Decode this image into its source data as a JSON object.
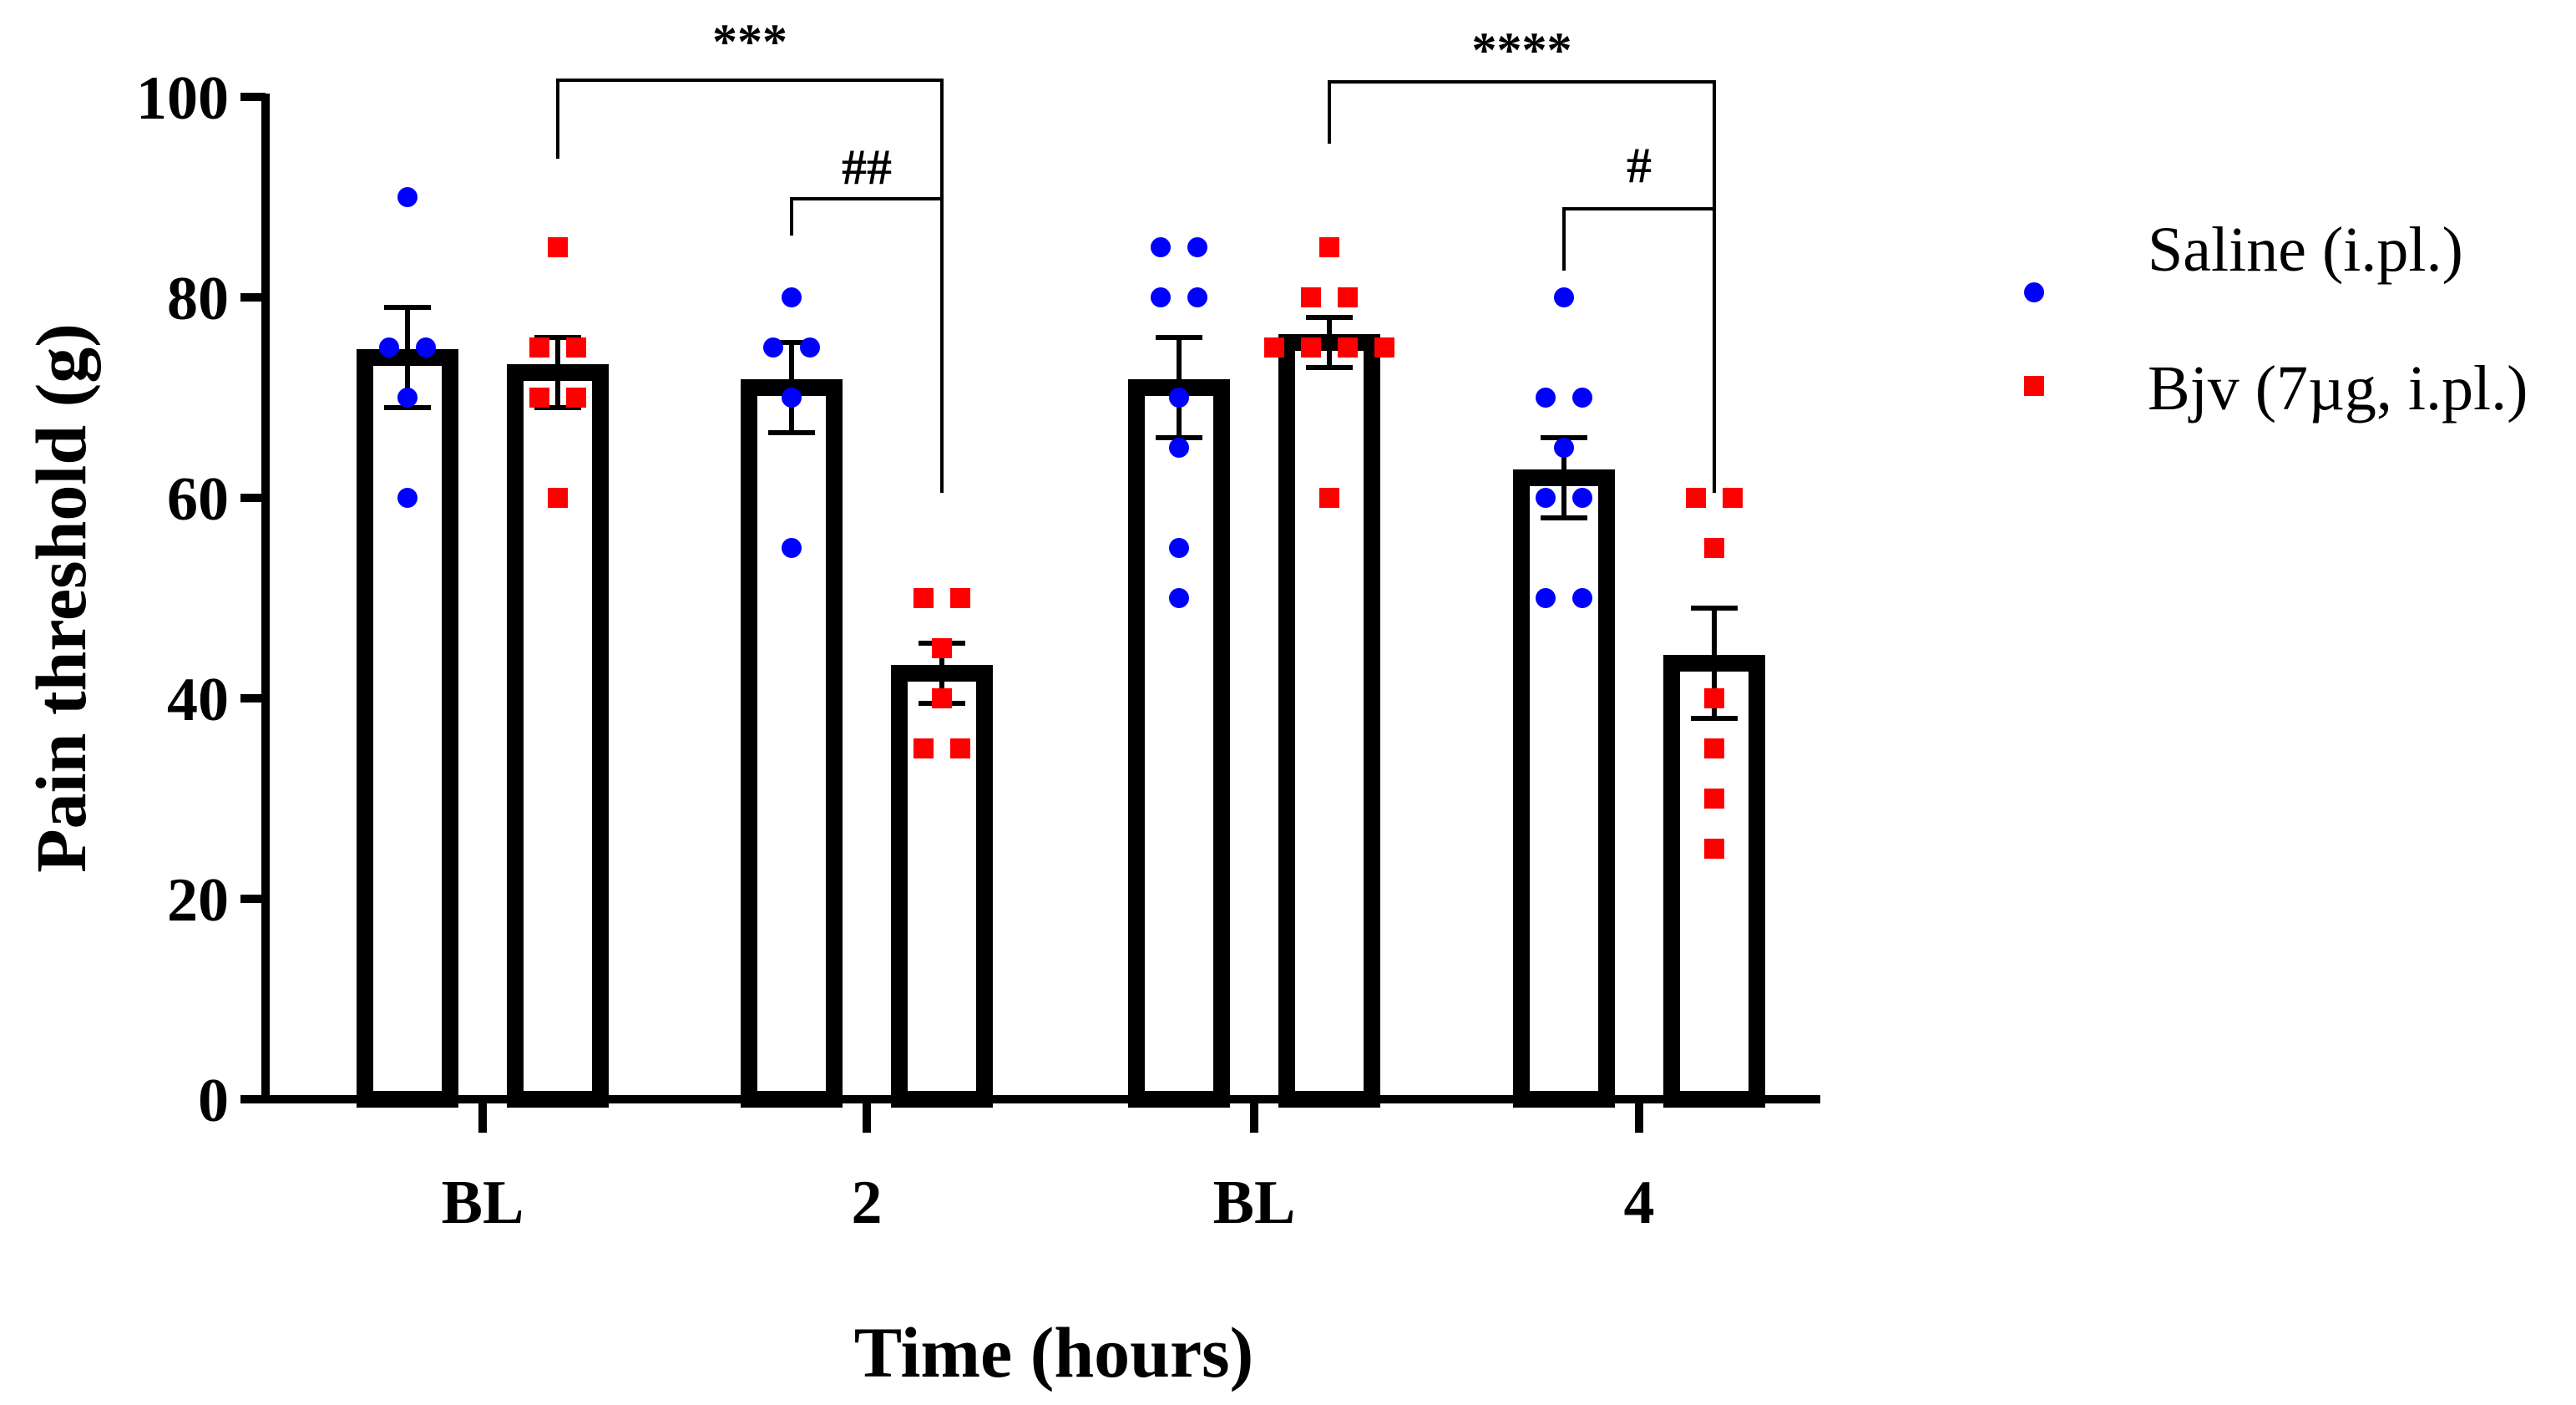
{
  "chart_data": {
    "type": "bar",
    "ylabel": "Pain threshold (g)",
    "xlabel": "Time (hours)",
    "ylim": [
      0,
      100
    ],
    "yticks": [
      0,
      20,
      40,
      60,
      80,
      100
    ],
    "categories": [
      "BL",
      "2",
      "BL",
      "4"
    ],
    "legend_position": "right",
    "series": [
      {
        "name": "Saline (i.pl.)",
        "color": "#0000ff",
        "marker": "circle",
        "means": [
          74,
          71,
          71,
          62
        ],
        "sem": [
          5,
          4.5,
          5,
          4
        ],
        "points": [
          [
            90,
            75,
            75,
            70,
            60
          ],
          [
            80,
            75,
            75,
            70,
            55
          ],
          [
            85,
            85,
            80,
            80,
            70,
            65,
            55,
            50
          ],
          [
            80,
            70,
            70,
            65,
            60,
            60,
            50,
            50
          ]
        ]
      },
      {
        "name": "Bjv (7µg, i.pl.)",
        "color": "#ff0000",
        "marker": "square",
        "means": [
          72.5,
          42.5,
          75.5,
          43.5
        ],
        "sem": [
          3.5,
          3,
          2.5,
          5.5
        ],
        "points": [
          [
            85,
            75,
            75,
            70,
            70,
            60
          ],
          [
            50,
            50,
            45,
            40,
            35,
            35
          ],
          [
            85,
            80,
            80,
            75,
            75,
            75,
            75,
            60
          ],
          [
            60,
            60,
            55,
            40,
            35,
            30,
            25
          ]
        ]
      }
    ],
    "annotations": [
      {
        "label": "***",
        "from": {
          "category": 0,
          "series": 1
        },
        "to": {
          "category": 1,
          "series": 1
        }
      },
      {
        "label": "##",
        "from": {
          "category": 1,
          "series": 0
        },
        "to": {
          "category": 1,
          "series": 1
        }
      },
      {
        "label": "****",
        "from": {
          "category": 2,
          "series": 1
        },
        "to": {
          "category": 3,
          "series": 1
        }
      },
      {
        "label": "#",
        "from": {
          "category": 3,
          "series": 0
        },
        "to": {
          "category": 3,
          "series": 1
        }
      }
    ]
  }
}
